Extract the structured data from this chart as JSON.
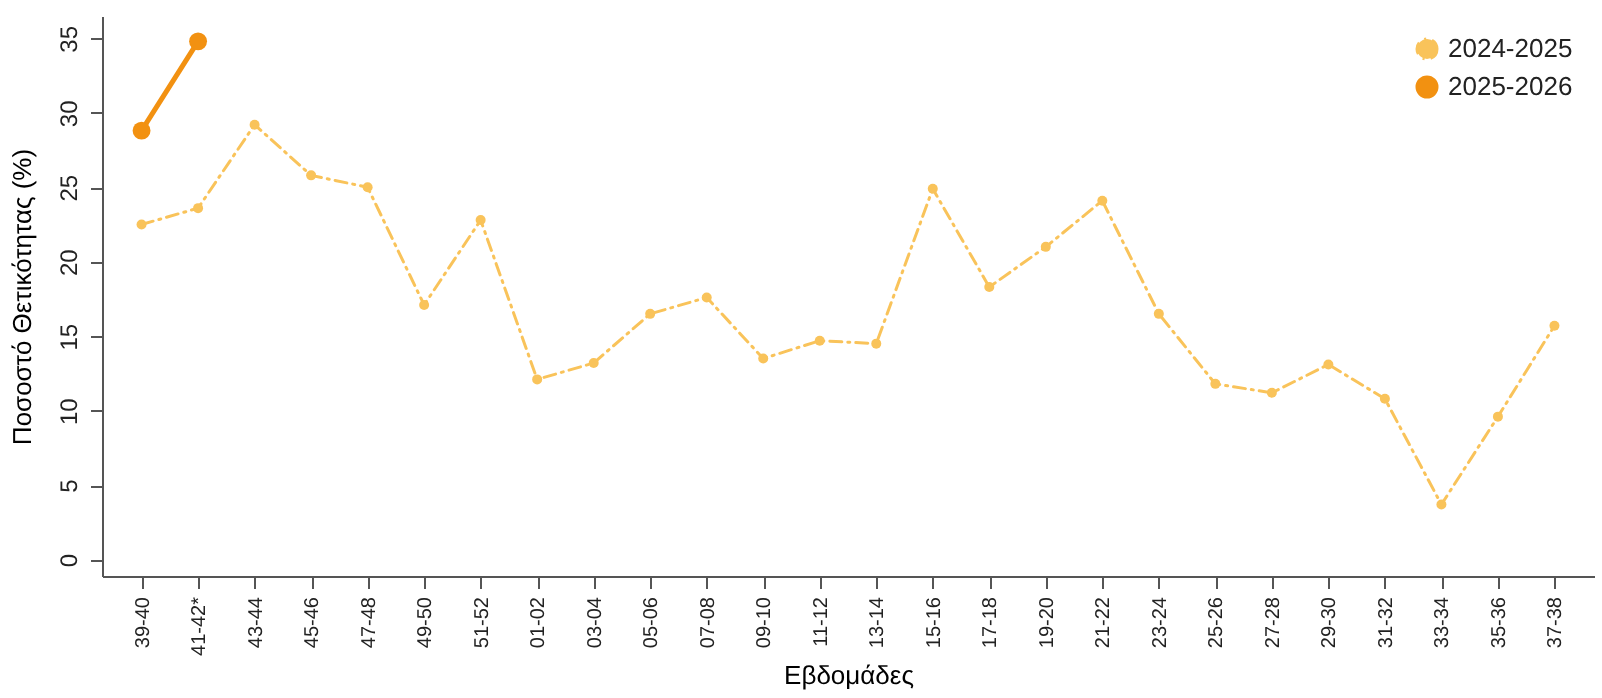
{
  "chart_data": {
    "type": "line",
    "xlabel": "Εβδομάδες",
    "ylabel": "Ποσοστό Θετικότητας (%)",
    "categories": [
      "39-40",
      "41-42*",
      "43-44",
      "45-46",
      "47-48",
      "49-50",
      "51-52",
      "01-02",
      "03-04",
      "05-06",
      "07-08",
      "09-10",
      "11-12",
      "13-14",
      "15-16",
      "17-18",
      "19-20",
      "21-22",
      "23-24",
      "25-26",
      "27-28",
      "29-30",
      "31-32",
      "33-34",
      "35-36",
      "37-38"
    ],
    "series": [
      {
        "name": "2024-2025",
        "color": "#f9c35a",
        "line_style": "dashed",
        "values": [
          22.5,
          23.6,
          29.2,
          25.8,
          25.0,
          17.1,
          22.8,
          12.1,
          13.2,
          16.5,
          17.6,
          13.5,
          14.7,
          14.5,
          24.9,
          18.3,
          21.0,
          24.1,
          16.5,
          11.8,
          11.2,
          13.1,
          10.8,
          3.7,
          9.6,
          15.7
        ]
      },
      {
        "name": "2025-2026",
        "color": "#f29111",
        "line_style": "solid",
        "values": [
          28.8,
          34.8,
          null,
          null,
          null,
          null,
          null,
          null,
          null,
          null,
          null,
          null,
          null,
          null,
          null,
          null,
          null,
          null,
          null,
          null,
          null,
          null,
          null,
          null,
          null,
          null
        ]
      }
    ],
    "ylim": [
      -1.1,
      36.5
    ],
    "yticks": [
      0,
      5,
      10,
      15,
      20,
      25,
      30,
      35
    ],
    "grid": false,
    "legend": "top right",
    "marker": "circle"
  }
}
